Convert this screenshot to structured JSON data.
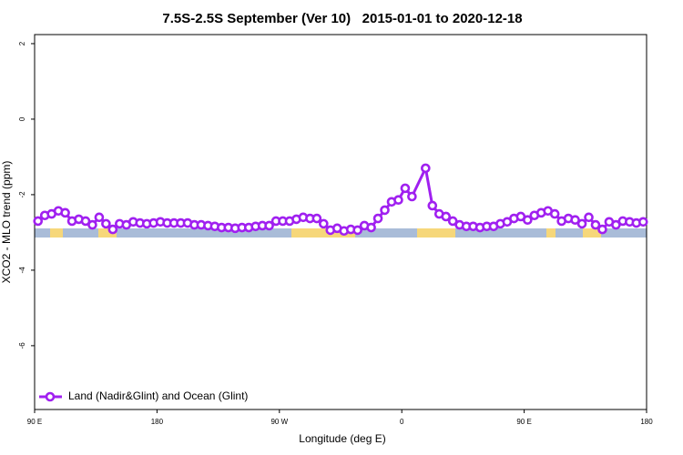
{
  "chart_data": {
    "type": "line",
    "title": "7.5S-2.5S September (Ver 10)   2015-01-01 to 2020-12-18",
    "x_label": "Longitude (deg E)",
    "y_label": "XCO2 - MLO trend (ppm)",
    "xlim": [
      90,
      540
    ],
    "ylim": [
      -7.69,
      2.24
    ],
    "xticks": [
      {
        "value": 90,
        "label": "90 E"
      },
      {
        "value": 180,
        "label": "180"
      },
      {
        "value": 270,
        "label": "90 W"
      },
      {
        "value": 360,
        "label": "0"
      },
      {
        "value": 450,
        "label": "90 E"
      },
      {
        "value": 540,
        "label": "180"
      }
    ],
    "yticks": [
      2,
      0,
      -2,
      -4,
      -6
    ],
    "legend_position": "lower left",
    "series": [
      {
        "name": "Land (Nadir&Glint) and Ocean (Glint)",
        "color": "#a020f0",
        "x": [
          92.5,
          97.5,
          102.5,
          107.5,
          112.5,
          117.5,
          122.5,
          127.5,
          132.5,
          137.5,
          142.5,
          147.5,
          152.5,
          157.5,
          162.5,
          167.5,
          172.5,
          177.5,
          182.5,
          187.5,
          192.5,
          197.5,
          202.5,
          207.5,
          212.5,
          217.5,
          222.5,
          227.5,
          232.5,
          237.5,
          242.5,
          247.5,
          252.5,
          257.5,
          262.5,
          267.5,
          272.5,
          277.5,
          282.5,
          287.5,
          292.5,
          297.5,
          302.5,
          307.5,
          312.5,
          317.5,
          322.5,
          327.5,
          332.5,
          337.5,
          342.5,
          347.5,
          352.5,
          357.5,
          362.5,
          367.5,
          377.5,
          382.5,
          387.5,
          392.5,
          397.5,
          402.5,
          407.5,
          412.5,
          417.5,
          422.5,
          427.5,
          432.5,
          437.5,
          442.5,
          447.5,
          452.5,
          457.5,
          462.5,
          467.5,
          472.5,
          477.5,
          482.5,
          487.5,
          492.5,
          497.5,
          502.5,
          507.5,
          512.5,
          517.5,
          522.5,
          527.5,
          532.5,
          537.5
        ],
        "values": [
          -2.7,
          -2.55,
          -2.51,
          -2.43,
          -2.48,
          -2.7,
          -2.65,
          -2.7,
          -2.8,
          -2.6,
          -2.77,
          -2.92,
          -2.77,
          -2.8,
          -2.72,
          -2.75,
          -2.77,
          -2.75,
          -2.72,
          -2.75,
          -2.75,
          -2.75,
          -2.75,
          -2.8,
          -2.8,
          -2.82,
          -2.84,
          -2.87,
          -2.87,
          -2.89,
          -2.87,
          -2.87,
          -2.84,
          -2.82,
          -2.82,
          -2.7,
          -2.7,
          -2.7,
          -2.65,
          -2.6,
          -2.63,
          -2.63,
          -2.77,
          -2.94,
          -2.89,
          -2.96,
          -2.92,
          -2.94,
          -2.82,
          -2.87,
          -2.63,
          -2.41,
          -2.19,
          -2.14,
          -1.83,
          -2.05,
          -1.3,
          -2.29,
          -2.51,
          -2.58,
          -2.7,
          -2.8,
          -2.84,
          -2.84,
          -2.87,
          -2.84,
          -2.84,
          -2.77,
          -2.72,
          -2.63,
          -2.58,
          -2.67,
          -2.55,
          -2.48,
          -2.43,
          -2.51,
          -2.7,
          -2.63,
          -2.67,
          -2.77,
          -2.6,
          -2.8,
          -2.92,
          -2.72,
          -2.8,
          -2.7,
          -2.72,
          -2.75,
          -2.72
        ]
      }
    ]
  }
}
